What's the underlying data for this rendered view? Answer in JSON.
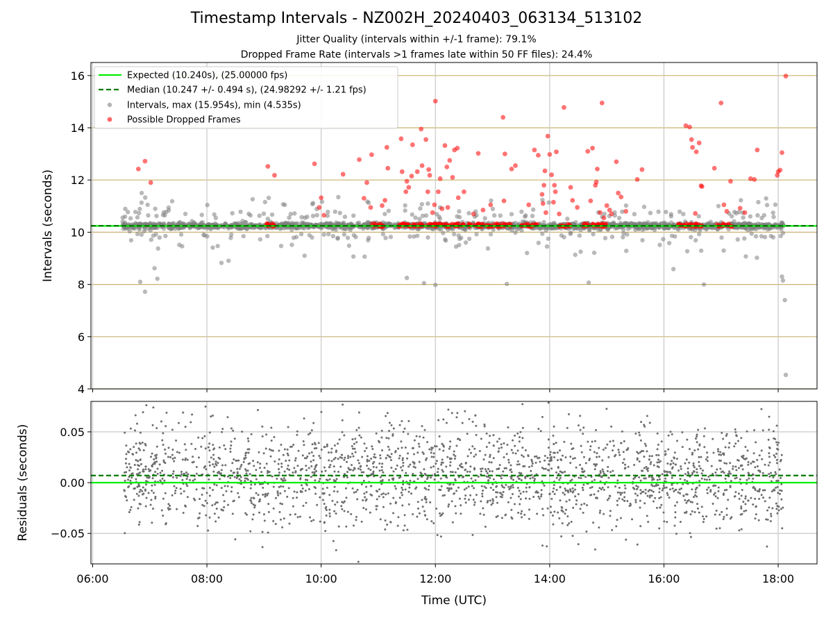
{
  "title": "Timestamp Intervals - NZ002H_20240403_063134_513102",
  "subtitle_jitter": "Jitter Quality (intervals within +/-1 frame): 79.1%",
  "subtitle_dropped": "Dropped Frame Rate (intervals >1 frames late within 50 FF files): 24.4%",
  "colors": {
    "expected": "#00ee00",
    "median": "#007a00",
    "intervals": "#808080",
    "dropped": "#ff0000",
    "hgrid_top": "#c8b36e",
    "grid": "#c8c8c8"
  },
  "chart_data": [
    {
      "type": "scatter",
      "panel": "intervals",
      "ylabel": "Intervals (seconds)",
      "ylim": [
        4,
        16.5
      ],
      "xlim_hours": [
        5.97,
        18.68
      ],
      "yticks": [
        4,
        6,
        8,
        10,
        12,
        14,
        16
      ],
      "xticks": [
        "06:00",
        "08:00",
        "10:00",
        "12:00",
        "14:00",
        "16:00",
        "18:00"
      ],
      "xtick_hours": [
        6,
        8,
        10,
        12,
        14,
        16,
        18
      ],
      "grid": true,
      "legend_position": "top-left",
      "legend": [
        "Expected (10.240s), (25.00000 fps)",
        "Median (10.247 +/- 0.494 s), (24.98292 +/- 1.21 fps)",
        "Intervals, max (15.954s), min (4.535s)",
        "Possible Dropped Frames"
      ],
      "expected": 10.24,
      "median": 10.247,
      "max": 15.954,
      "min": 4.535,
      "time_range": [
        "06:31",
        "18:06"
      ],
      "dropped_points": [
        [
          "06:48",
          12.42
        ],
        [
          "06:55",
          12.72
        ],
        [
          "07:01",
          11.9
        ],
        [
          "09:04",
          12.52
        ],
        [
          "09:11",
          12.18
        ],
        [
          "09:53",
          12.62
        ],
        [
          "09:58",
          10.95
        ],
        [
          "10:00",
          11.32
        ],
        [
          "10:03",
          10.65
        ],
        [
          "10:23",
          12.22
        ],
        [
          "10:40",
          12.78
        ],
        [
          "10:45",
          11.3
        ],
        [
          "10:48",
          11.9
        ],
        [
          "10:52",
          10.95
        ],
        [
          "10:53",
          12.97
        ],
        [
          "11:04",
          11.02
        ],
        [
          "11:07",
          11.22
        ],
        [
          "11:09",
          13.25
        ],
        [
          "11:10",
          12.45
        ],
        [
          "11:24",
          13.58
        ],
        [
          "11:25",
          12.32
        ],
        [
          "11:29",
          11.55
        ],
        [
          "11:30",
          11.95
        ],
        [
          "11:32",
          11.72
        ],
        [
          "11:35",
          12.15
        ],
        [
          "11:36",
          13.35
        ],
        [
          "11:41",
          12.32
        ],
        [
          "11:45",
          13.95
        ],
        [
          "11:46",
          12.55
        ],
        [
          "11:50",
          13.55
        ],
        [
          "11:52",
          11.55
        ],
        [
          "11:53",
          12.4
        ],
        [
          "11:54",
          12.18
        ],
        [
          "11:57",
          10.75
        ],
        [
          "11:59",
          11.05
        ],
        [
          "12:00",
          15.02
        ],
        [
          "12:03",
          11.55
        ],
        [
          "12:05",
          12.05
        ],
        [
          "12:07",
          10.9
        ],
        [
          "12:10",
          13.32
        ],
        [
          "12:12",
          12.5
        ],
        [
          "12:13",
          10.95
        ],
        [
          "12:15",
          12.75
        ],
        [
          "12:18",
          12.1
        ],
        [
          "12:20",
          13.15
        ],
        [
          "12:23",
          13.22
        ],
        [
          "12:24",
          11.32
        ],
        [
          "12:30",
          11.55
        ],
        [
          "12:40",
          10.7
        ],
        [
          "12:45",
          13.02
        ],
        [
          "12:50",
          10.85
        ],
        [
          "12:58",
          11.05
        ],
        [
          "13:11",
          14.4
        ],
        [
          "13:12",
          11.2
        ],
        [
          "13:13",
          13.0
        ],
        [
          "13:20",
          12.42
        ],
        [
          "13:24",
          12.55
        ],
        [
          "13:38",
          11.05
        ],
        [
          "13:44",
          13.15
        ],
        [
          "13:48",
          12.95
        ],
        [
          "13:52",
          11.45
        ],
        [
          "13:53",
          11.1
        ],
        [
          "13:54",
          11.8
        ],
        [
          "13:55",
          12.35
        ],
        [
          "13:56",
          10.75
        ],
        [
          "13:58",
          13.68
        ],
        [
          "14:00",
          12.98
        ],
        [
          "14:02",
          12.2
        ],
        [
          "14:04",
          11.15
        ],
        [
          "14:05",
          11.8
        ],
        [
          "14:06",
          11.55
        ],
        [
          "14:07",
          13.08
        ],
        [
          "14:10",
          10.7
        ],
        [
          "14:15",
          14.78
        ],
        [
          "14:22",
          11.72
        ],
        [
          "14:24",
          11.22
        ],
        [
          "14:29",
          10.95
        ],
        [
          "14:40",
          13.1
        ],
        [
          "14:43",
          11.2
        ],
        [
          "14:45",
          13.22
        ],
        [
          "14:48",
          11.8
        ],
        [
          "14:49",
          11.92
        ],
        [
          "14:50",
          12.42
        ],
        [
          "14:53",
          10.75
        ],
        [
          "14:55",
          14.95
        ],
        [
          "14:57",
          10.55
        ],
        [
          "15:00",
          11.02
        ],
        [
          "15:03",
          10.85
        ],
        [
          "15:05",
          10.7
        ],
        [
          "15:10",
          12.7
        ],
        [
          "15:12",
          11.5
        ],
        [
          "15:15",
          11.35
        ],
        [
          "15:20",
          10.8
        ],
        [
          "15:32",
          12.02
        ],
        [
          "15:37",
          12.4
        ],
        [
          "16:23",
          14.08
        ],
        [
          "16:27",
          14.03
        ],
        [
          "16:29",
          13.55
        ],
        [
          "16:30",
          13.25
        ],
        [
          "16:33",
          10.72
        ],
        [
          "16:34",
          13.08
        ],
        [
          "16:37",
          13.42
        ],
        [
          "16:39",
          11.78
        ],
        [
          "16:40",
          11.75
        ],
        [
          "16:53",
          12.45
        ],
        [
          "17:00",
          14.95
        ],
        [
          "17:03",
          11.05
        ],
        [
          "17:06",
          10.8
        ],
        [
          "17:10",
          11.95
        ],
        [
          "17:20",
          10.92
        ],
        [
          "17:25",
          10.75
        ],
        [
          "17:31",
          12.05
        ],
        [
          "17:35",
          12.02
        ],
        [
          "17:38",
          13.15
        ],
        [
          "17:59",
          12.18
        ],
        [
          "18:00",
          12.32
        ],
        [
          "18:02",
          12.38
        ],
        [
          "18:04",
          13.05
        ],
        [
          "18:08",
          15.98
        ]
      ],
      "dropped_clusters": [
        [
          "09:00",
          "09:11",
          10.27
        ],
        [
          "10:53",
          "11:06",
          10.27
        ],
        [
          "11:20",
          "12:30",
          10.27
        ],
        [
          "12:35",
          "12:37",
          10.27
        ],
        [
          "12:40",
          "12:55",
          10.27
        ],
        [
          "12:55",
          "13:03",
          10.27
        ],
        [
          "13:00",
          "13:20",
          10.27
        ],
        [
          "13:30",
          "13:48",
          10.27
        ],
        [
          "14:10",
          "14:22",
          10.27
        ],
        [
          "14:35",
          "15:00",
          10.27
        ],
        [
          "16:15",
          "16:42",
          10.27
        ],
        [
          "16:55",
          "17:12",
          10.27
        ]
      ],
      "low_interval_points": [
        [
          "06:55",
          7.72
        ],
        [
          "06:50",
          8.1
        ],
        [
          "07:08",
          8.22
        ],
        [
          "07:05",
          8.62
        ],
        [
          "11:30",
          8.25
        ],
        [
          "11:48",
          8.05
        ],
        [
          "12:00",
          7.98
        ],
        [
          "13:15",
          8.02
        ],
        [
          "14:41",
          8.07
        ],
        [
          "16:42",
          8.0
        ],
        [
          "18:04",
          8.3
        ],
        [
          "18:05",
          8.15
        ],
        [
          "18:07",
          7.4
        ],
        [
          "18:08",
          4.535
        ]
      ]
    },
    {
      "type": "scatter",
      "panel": "residuals",
      "ylabel": "Residuals (seconds)",
      "xlabel": "Time (UTC)",
      "ylim": [
        -0.08,
        0.08
      ],
      "yticks": [
        "−0.05",
        "0.00",
        "0.05"
      ],
      "ytick_values": [
        -0.05,
        0,
        0.05
      ],
      "xticks": [
        "06:00",
        "08:00",
        "10:00",
        "12:00",
        "14:00",
        "16:00",
        "18:00"
      ],
      "xtick_hours": [
        6,
        8,
        10,
        12,
        14,
        16,
        18
      ],
      "grid": true,
      "expected_residual": 0.0,
      "median_residual": 0.007,
      "spread_std": 0.025,
      "time_range": [
        "06:33",
        "18:06"
      ]
    }
  ]
}
